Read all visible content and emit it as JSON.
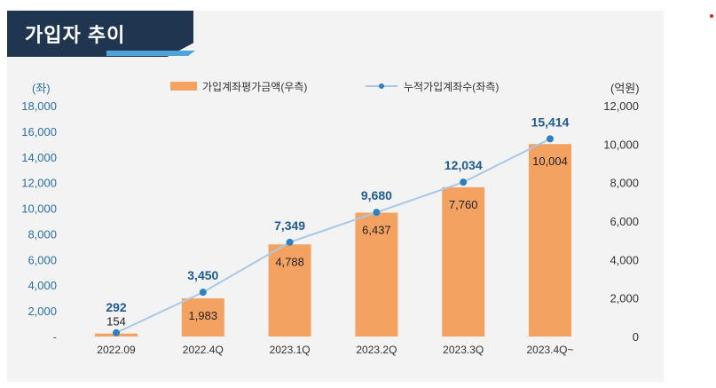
{
  "title": "가입자 추이",
  "chart_data": {
    "type": "bar+line",
    "categories": [
      "2022.09",
      "2022.4Q",
      "2023.1Q",
      "2023.2Q",
      "2023.3Q",
      "2023.4Q~"
    ],
    "series": [
      {
        "name": "가입계좌평가금액(우측)",
        "type": "bar",
        "axis": "right",
        "unit": "억원",
        "values": [
          154,
          1983,
          4788,
          6437,
          7760,
          10004
        ]
      },
      {
        "name": "누적가입계좌수(좌측)",
        "type": "line",
        "axis": "left",
        "unit": "좌",
        "values": [
          292,
          3450,
          7349,
          9680,
          12034,
          15414
        ]
      }
    ],
    "left_axis": {
      "unit_label": "(좌)",
      "ylim": [
        0,
        18000
      ],
      "ticks": [
        "-",
        "2,000",
        "4,000",
        "6,000",
        "8,000",
        "10,000",
        "12,000",
        "14,000",
        "16,000",
        "18,000"
      ]
    },
    "right_axis": {
      "unit_label": "(억원)",
      "ylim": [
        0,
        12000
      ],
      "ticks": [
        "0",
        "2,000",
        "4,000",
        "6,000",
        "8,000",
        "10,000",
        "12,000"
      ]
    },
    "bar_labels": [
      "154",
      "1,983",
      "4,788",
      "6,437",
      "7,760",
      "10,004"
    ],
    "line_labels": [
      "292",
      "3,450",
      "7,349",
      "9,680",
      "12,034",
      "15,414"
    ],
    "colors": {
      "bar": "#f4a261",
      "line": "#a9c8e8",
      "marker": "#2f7fc1",
      "left_tick": "#2b6fb0"
    },
    "legend_position": "top-center"
  }
}
